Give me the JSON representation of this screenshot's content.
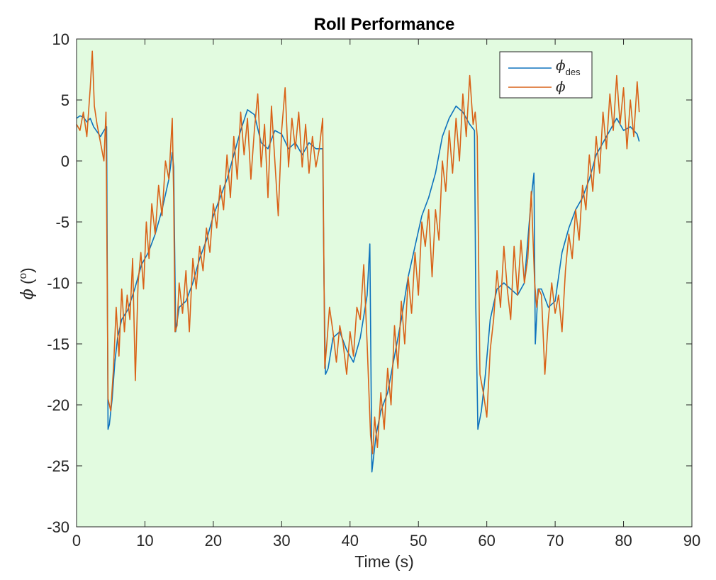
{
  "chart_data": {
    "type": "line",
    "title": "Roll Performance",
    "xlabel": "Time (s)",
    "ylabel_symbol": "ϕ",
    "ylabel_unit_open": "(",
    "ylabel_unit_sup": "o",
    "ylabel_unit_close": ")",
    "xlim": [
      0,
      90
    ],
    "ylim": [
      -30,
      10
    ],
    "xticks": [
      0,
      10,
      20,
      30,
      40,
      50,
      60,
      70,
      80,
      90
    ],
    "yticks": [
      -30,
      -25,
      -20,
      -15,
      -10,
      -5,
      0,
      5,
      10
    ],
    "xtick_labels": [
      "0",
      "10",
      "20",
      "30",
      "40",
      "50",
      "60",
      "70",
      "80",
      "90"
    ],
    "ytick_labels": [
      "-30",
      "-25",
      "-20",
      "-15",
      "-10",
      "-5",
      "0",
      "5",
      "10"
    ],
    "background_color": "#e2fbe0",
    "grid": false,
    "legend_position": "top-right",
    "series": [
      {
        "name": "ϕ",
        "name_sub": "des",
        "color": "#0e72bd",
        "x": [
          0,
          0.5,
          1,
          1.5,
          2,
          2.5,
          3,
          3.5,
          4,
          4.4,
          4.6,
          4.8,
          5.2,
          5.6,
          6,
          6.6,
          7.5,
          8.5,
          9.5,
          10.5,
          11.5,
          12.5,
          13.5,
          14,
          14.2,
          14.5,
          15,
          16,
          17,
          18,
          19,
          20,
          21,
          22,
          23,
          24,
          25,
          26,
          27,
          28,
          29,
          30,
          31,
          32,
          33,
          34,
          35,
          36,
          36.2,
          36.4,
          36.8,
          37.5,
          38.5,
          39.5,
          40.5,
          41.5,
          42.5,
          42.9,
          43.2,
          43.8,
          44.5,
          45.5,
          46.5,
          47.5,
          48.5,
          49.5,
          50.5,
          51.5,
          52.5,
          53.5,
          54.5,
          55.5,
          56.5,
          57.5,
          58.2,
          58.4,
          58.7,
          59.2,
          59.8,
          60.5,
          61.5,
          62.5,
          63.5,
          64.5,
          65.5,
          66.5,
          66.9,
          67.1,
          67.5,
          68,
          69,
          70,
          71,
          72,
          73,
          74,
          75,
          76,
          77,
          78,
          79,
          80,
          81,
          82,
          82.3
        ],
        "y": [
          3.5,
          3.7,
          3.6,
          3.2,
          3.5,
          2.8,
          2.4,
          2.0,
          2.5,
          2.8,
          -22.0,
          -21.6,
          -19.5,
          -16.5,
          -14.5,
          -13.0,
          -12.2,
          -10.5,
          -8.5,
          -7.5,
          -6.0,
          -4.0,
          -1.5,
          0.7,
          -0.5,
          -14.0,
          -12.0,
          -11.5,
          -10.0,
          -8.0,
          -6.5,
          -4.5,
          -3.0,
          -1.5,
          0.5,
          2.5,
          4.2,
          3.8,
          1.5,
          1.0,
          2.5,
          2.2,
          1.0,
          1.5,
          0.5,
          1.5,
          1.0,
          1.0,
          -10.0,
          -17.5,
          -17.0,
          -14.5,
          -14.0,
          -15.5,
          -16.5,
          -14.5,
          -11.0,
          -6.8,
          -25.5,
          -22.5,
          -20.5,
          -19.0,
          -16.0,
          -13.0,
          -9.5,
          -7.0,
          -4.5,
          -3.0,
          -1.0,
          2.0,
          3.5,
          4.5,
          4.0,
          3.0,
          2.5,
          -12.0,
          -22.0,
          -20.5,
          -17.5,
          -13.0,
          -10.5,
          -10.0,
          -10.5,
          -11.0,
          -10.0,
          -3.0,
          -1.0,
          -15.0,
          -10.5,
          -10.5,
          -12.0,
          -11.5,
          -7.5,
          -5.5,
          -4.0,
          -3.0,
          -1.5,
          0.5,
          1.5,
          2.5,
          3.5,
          2.5,
          2.8,
          2.2,
          1.6
        ]
      },
      {
        "name": "ϕ",
        "name_sub": "",
        "color": "#d96218",
        "x": [
          0,
          0.5,
          1,
          1.5,
          2,
          2.3,
          2.6,
          3,
          3.5,
          4,
          4.3,
          4.6,
          5.0,
          5.4,
          5.8,
          6.2,
          6.6,
          7.0,
          7.4,
          7.8,
          8.2,
          8.6,
          9.0,
          9.4,
          9.8,
          10.2,
          10.6,
          11.0,
          11.5,
          12,
          12.5,
          13,
          13.5,
          14,
          14.2,
          14.4,
          14.7,
          15,
          15.5,
          16,
          16.5,
          17,
          17.5,
          18,
          18.5,
          19,
          19.5,
          20,
          20.5,
          21,
          21.5,
          22,
          22.5,
          23,
          23.5,
          24,
          24.5,
          25,
          25.5,
          26,
          26.5,
          27,
          27.5,
          28,
          28.5,
          29,
          29.5,
          30,
          30.5,
          31,
          31.5,
          32,
          32.5,
          33,
          33.5,
          34,
          34.5,
          35,
          35.5,
          36,
          36.3,
          36.6,
          37,
          37.5,
          38,
          38.5,
          39,
          39.5,
          40,
          40.5,
          41,
          41.5,
          42,
          42.5,
          43,
          43.3,
          43.6,
          44,
          44.5,
          45,
          45.5,
          46,
          46.5,
          47,
          47.5,
          48,
          48.5,
          49,
          49.5,
          50,
          50.5,
          51,
          51.5,
          52,
          52.5,
          53,
          53.5,
          54,
          54.5,
          55,
          55.5,
          56,
          56.5,
          57,
          57.5,
          58,
          58.3,
          58.6,
          59,
          59.5,
          60,
          60.5,
          61,
          61.5,
          62,
          62.5,
          63,
          63.5,
          64,
          64.5,
          65,
          65.5,
          66,
          66.5,
          67,
          67.3,
          67.6,
          68,
          68.5,
          69,
          69.5,
          70,
          70.5,
          71,
          71.5,
          72,
          72.5,
          73,
          73.5,
          74,
          74.5,
          75,
          75.5,
          76,
          76.5,
          77,
          77.5,
          78,
          78.5,
          79,
          79.5,
          80,
          80.5,
          81,
          81.5,
          82,
          82.3
        ],
        "y": [
          3.0,
          2.5,
          4.0,
          2.0,
          6.0,
          9.0,
          4.5,
          3.0,
          1.5,
          0.0,
          4.0,
          -19.5,
          -20.5,
          -17.0,
          -12.0,
          -16.0,
          -10.5,
          -14.0,
          -11.0,
          -13.0,
          -8.0,
          -18.0,
          -10.0,
          -7.5,
          -10.5,
          -5.0,
          -8.0,
          -3.5,
          -6.0,
          -2.0,
          -4.5,
          0.0,
          -1.5,
          3.5,
          -3.0,
          -14.0,
          -13.5,
          -10.0,
          -12.5,
          -9.0,
          -14.0,
          -8.0,
          -10.5,
          -7.0,
          -9.0,
          -5.5,
          -7.5,
          -3.5,
          -5.5,
          -2.0,
          -4.0,
          0.5,
          -3.0,
          2.0,
          -1.5,
          4.0,
          0.5,
          3.5,
          -1.5,
          2.5,
          5.5,
          -0.5,
          3.0,
          -3.0,
          4.5,
          0.0,
          -4.5,
          2.5,
          6.0,
          -0.5,
          3.5,
          1.0,
          4.0,
          -0.5,
          3.0,
          -1.0,
          2.0,
          -0.5,
          1.0,
          3.5,
          -17.0,
          -15.0,
          -12.0,
          -14.0,
          -16.5,
          -13.5,
          -15.0,
          -17.5,
          -14.0,
          -16.0,
          -12.0,
          -13.0,
          -8.5,
          -15.0,
          -22.5,
          -24.0,
          -21.0,
          -23.5,
          -19.0,
          -22.0,
          -17.0,
          -20.0,
          -13.5,
          -17.0,
          -11.5,
          -15.0,
          -9.5,
          -12.5,
          -7.5,
          -11.0,
          -5.0,
          -7.0,
          -4.0,
          -9.5,
          -4.0,
          -6.5,
          0.0,
          -2.5,
          2.5,
          -1.0,
          3.5,
          0.0,
          5.5,
          2.0,
          7.0,
          3.0,
          4.0,
          2.0,
          -17.5,
          -19.0,
          -21.0,
          -15.5,
          -13.0,
          -9.0,
          -12.0,
          -7.0,
          -10.5,
          -13.0,
          -7.0,
          -11.0,
          -6.5,
          -10.0,
          -8.0,
          -2.5,
          -10.0,
          -12.0,
          -10.5,
          -11.0,
          -17.5,
          -13.0,
          -10.0,
          -12.5,
          -11.0,
          -14.0,
          -9.0,
          -6.0,
          -8.0,
          -4.0,
          -6.5,
          -2.0,
          -4.0,
          0.5,
          -2.5,
          2.0,
          -1.0,
          4.0,
          1.0,
          5.5,
          2.5,
          7.0,
          3.0,
          6.0,
          1.0,
          5.0,
          2.0,
          6.5,
          4.0
        ]
      }
    ]
  }
}
